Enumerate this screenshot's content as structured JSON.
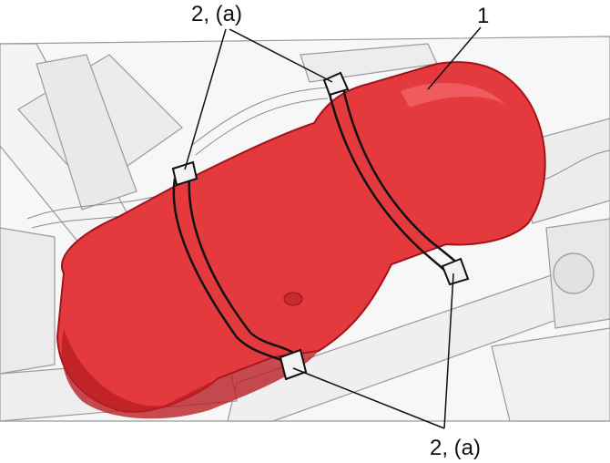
{
  "callouts": {
    "top_strap_label": "2, (a)",
    "tank_label": "1",
    "bottom_strap_label": "2, (a)"
  },
  "colors": {
    "tank_fill": "#e43a3e",
    "tank_shadow": "#b91e24",
    "strap_stroke": "#111111",
    "chassis_stroke": "#9a9a9a",
    "background": "#ffffff"
  },
  "parts": [
    {
      "id": "1",
      "name": "fuel-tank"
    },
    {
      "id": "2",
      "name": "fuel-tank-strap",
      "note_ref": "(a)"
    }
  ]
}
